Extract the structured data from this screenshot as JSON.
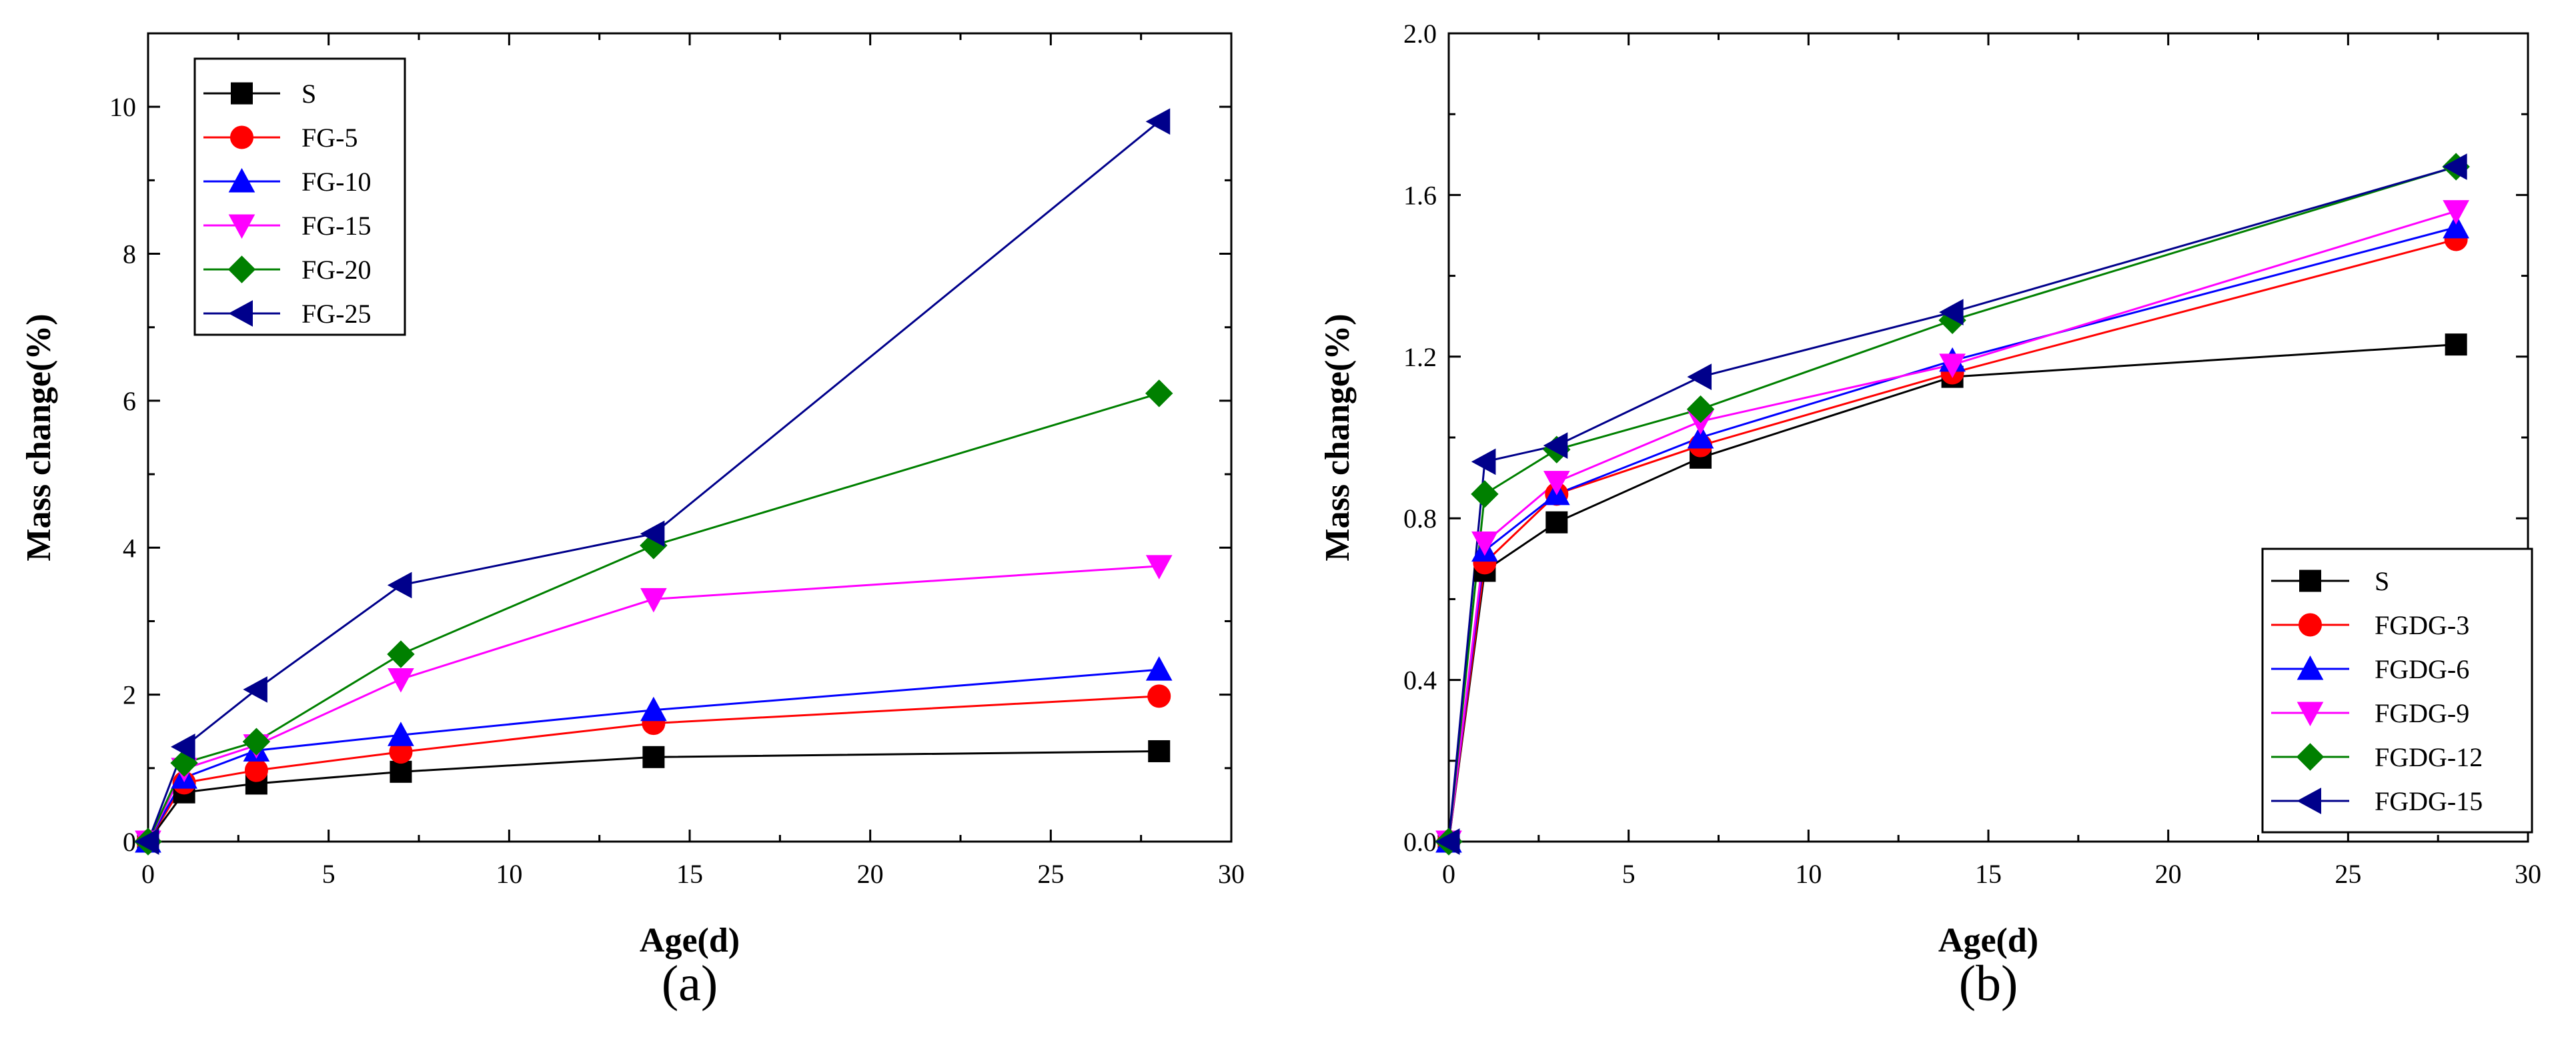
{
  "chart_data": [
    {
      "type": "line",
      "panel_label": "(a)",
      "xlabel": "Age(d)",
      "ylabel": "Mass change(%)",
      "xlim": [
        0,
        30
      ],
      "ylim": [
        0,
        11
      ],
      "xticks": [
        0,
        5,
        10,
        15,
        20,
        25,
        30
      ],
      "yticks": [
        0,
        2,
        4,
        6,
        8,
        10
      ],
      "grid": false,
      "legend_position": "top-left",
      "x": [
        0,
        1,
        3,
        7,
        14,
        28
      ],
      "series": [
        {
          "name": "S",
          "color": "#000000",
          "marker": "square",
          "values": [
            0,
            0.67,
            0.79,
            0.95,
            1.15,
            1.23
          ]
        },
        {
          "name": "FG-5",
          "color": "#ff0000",
          "marker": "circle",
          "values": [
            0,
            0.8,
            0.97,
            1.22,
            1.61,
            1.98
          ]
        },
        {
          "name": "FG-10",
          "color": "#0000ff",
          "marker": "triangle-up",
          "values": [
            0,
            0.87,
            1.24,
            1.45,
            1.79,
            2.34
          ]
        },
        {
          "name": "FG-15",
          "color": "#ff00ff",
          "marker": "triangle-down",
          "values": [
            0,
            0.99,
            1.31,
            2.21,
            3.3,
            3.75
          ]
        },
        {
          "name": "FG-20",
          "color": "#008000",
          "marker": "diamond",
          "values": [
            0,
            1.07,
            1.36,
            2.55,
            4.03,
            6.1
          ]
        },
        {
          "name": "FG-25",
          "color": "#00008b",
          "marker": "triangle-left",
          "values": [
            0,
            1.29,
            2.07,
            3.49,
            4.19,
            9.8
          ]
        }
      ]
    },
    {
      "type": "line",
      "panel_label": "(b)",
      "xlabel": "Age(d)",
      "ylabel": "Mass change(%)",
      "xlim": [
        0,
        30
      ],
      "ylim": [
        0,
        2.0
      ],
      "xticks": [
        0,
        5,
        10,
        15,
        20,
        25,
        30
      ],
      "yticks": [
        0.0,
        0.4,
        0.8,
        1.2,
        1.6,
        2.0
      ],
      "ytick_labels": [
        "0.0",
        "0.4",
        "0.8",
        "1.2",
        "1.6",
        "2.0"
      ],
      "grid": false,
      "legend_position": "bottom-right",
      "x": [
        0,
        1,
        3,
        7,
        14,
        28
      ],
      "series": [
        {
          "name": "S",
          "color": "#000000",
          "marker": "square",
          "values": [
            0,
            0.67,
            0.79,
            0.95,
            1.15,
            1.23
          ]
        },
        {
          "name": "FGDG-3",
          "color": "#ff0000",
          "marker": "circle",
          "values": [
            0,
            0.69,
            0.86,
            0.98,
            1.16,
            1.49
          ]
        },
        {
          "name": "FGDG-6",
          "color": "#0000ff",
          "marker": "triangle-up",
          "values": [
            0,
            0.72,
            0.86,
            1.0,
            1.19,
            1.52
          ]
        },
        {
          "name": "FGDG-9",
          "color": "#ff00ff",
          "marker": "triangle-down",
          "values": [
            0,
            0.74,
            0.89,
            1.04,
            1.18,
            1.56
          ]
        },
        {
          "name": "FGDG-12",
          "color": "#008000",
          "marker": "diamond",
          "values": [
            0,
            0.86,
            0.97,
            1.07,
            1.29,
            1.67
          ]
        },
        {
          "name": "FGDG-15",
          "color": "#00008b",
          "marker": "triangle-left",
          "values": [
            0,
            0.94,
            0.98,
            1.15,
            1.31,
            1.67
          ]
        }
      ]
    }
  ]
}
